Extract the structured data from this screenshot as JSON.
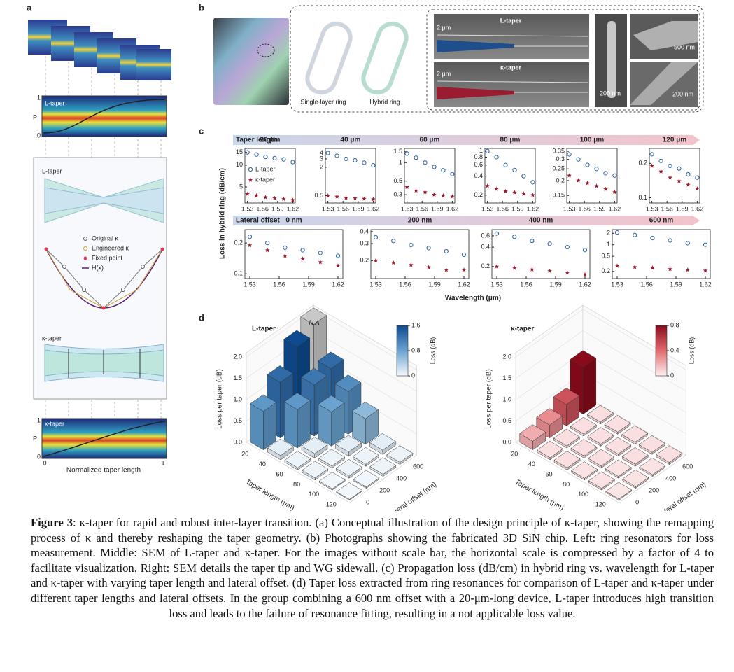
{
  "panel_a": {
    "label": "a",
    "l_taper_plot": {
      "title": "L-taper",
      "ylabel": "P",
      "ytick_low": "0",
      "ytick_high": "1"
    },
    "middle": {
      "title": "L-taper",
      "legend": [
        "Original κ",
        "Engineered κ",
        "Fixed point",
        "H(x)"
      ],
      "bottom_title": "κ-taper"
    },
    "k_taper_plot": {
      "title": "κ-taper",
      "ylabel": "P",
      "ytick_low": "0",
      "ytick_high": "1",
      "xtick_low": "0",
      "xtick_high": "1",
      "xlabel": "Normalized taper length"
    }
  },
  "panel_b": {
    "label": "b",
    "ring_labels": [
      "Single-layer ring",
      "Hybrid ring"
    ],
    "sem": [
      {
        "title": "L-taper",
        "scale": "2 μm"
      },
      {
        "title": "κ-taper",
        "scale": "2 μm"
      }
    ],
    "sem_scales": [
      "200 nm",
      "500 nm",
      "200 nm"
    ]
  },
  "panel_c": {
    "label": "c",
    "ylabel": "Loss in hybrid ring (dB/cm)",
    "xlabel": "Wavelength (μm)",
    "row1_header": "Taper length",
    "row2_header": "Lateral offset"
  },
  "panel_d": {
    "label": "d"
  },
  "chart_data": [
    {
      "type": "scatter",
      "title": "20 μm",
      "log": true,
      "legend": true,
      "x": [
        1.53,
        1.548,
        1.566,
        1.584,
        1.602,
        1.62
      ],
      "xlim": [
        1.525,
        1.625
      ],
      "xticks": [
        1.53,
        1.56,
        1.59,
        1.62
      ],
      "ylim": [
        3,
        17
      ],
      "yticks": [
        5,
        10,
        15
      ],
      "series": [
        {
          "name": "L-taper",
          "color": "#2c5f9e",
          "values": [
            15,
            14,
            13,
            12.5,
            12,
            11
          ]
        },
        {
          "name": "κ-taper",
          "color": "#9b1b30",
          "values": [
            4,
            3.8,
            3.6,
            3.5,
            3.4,
            3.3
          ]
        }
      ]
    },
    {
      "type": "scatter",
      "title": "40 μm",
      "log": true,
      "x": [
        1.53,
        1.548,
        1.566,
        1.584,
        1.602,
        1.62
      ],
      "xlim": [
        1.525,
        1.625
      ],
      "xticks": [
        1.53,
        1.56,
        1.59,
        1.62
      ],
      "ylim": [
        0.35,
        5
      ],
      "yticks": [
        0.5,
        2,
        3,
        4
      ],
      "series": [
        {
          "color": "#2c5f9e",
          "values": [
            4,
            3.5,
            3,
            2.8,
            2.5,
            2.2
          ]
        },
        {
          "color": "#9b1b30",
          "values": [
            0.5,
            0.48,
            0.45,
            0.44,
            0.43,
            0.42
          ]
        }
      ]
    },
    {
      "type": "scatter",
      "title": "60 μm",
      "log": true,
      "x": [
        1.53,
        1.548,
        1.566,
        1.584,
        1.602,
        1.62
      ],
      "xlim": [
        1.525,
        1.625
      ],
      "xticks": [
        1.53,
        1.56,
        1.59,
        1.62
      ],
      "ylim": [
        0.22,
        1.7
      ],
      "yticks": [
        0.3,
        0.5,
        1,
        1.5
      ],
      "series": [
        {
          "color": "#2c5f9e",
          "values": [
            1.4,
            1.2,
            1,
            0.85,
            0.75,
            0.65
          ]
        },
        {
          "color": "#9b1b30",
          "values": [
            0.4,
            0.35,
            0.33,
            0.3,
            0.29,
            0.28
          ]
        }
      ]
    },
    {
      "type": "scatter",
      "title": "80 μm",
      "log": true,
      "x": [
        1.53,
        1.548,
        1.566,
        1.584,
        1.602,
        1.62
      ],
      "xlim": [
        1.525,
        1.625
      ],
      "xticks": [
        1.53,
        1.56,
        1.59,
        1.62
      ],
      "ylim": [
        0.15,
        1.1
      ],
      "yticks": [
        0.2,
        0.4,
        0.6,
        0.8,
        1
      ],
      "series": [
        {
          "color": "#2c5f9e",
          "values": [
            1,
            0.8,
            0.6,
            0.5,
            0.4,
            0.32
          ]
        },
        {
          "color": "#9b1b30",
          "values": [
            0.28,
            0.25,
            0.23,
            0.22,
            0.21,
            0.2
          ]
        }
      ]
    },
    {
      "type": "scatter",
      "title": "100 μm",
      "log": true,
      "x": [
        1.53,
        1.548,
        1.566,
        1.584,
        1.602,
        1.62
      ],
      "xlim": [
        1.525,
        1.625
      ],
      "xticks": [
        1.53,
        1.56,
        1.59,
        1.62
      ],
      "ylim": [
        0.13,
        0.37
      ],
      "yticks": [
        0.15,
        0.2,
        0.25,
        0.3,
        0.35
      ],
      "series": [
        {
          "color": "#2c5f9e",
          "values": [
            0.33,
            0.3,
            0.27,
            0.25,
            0.23,
            0.22
          ]
        },
        {
          "color": "#9b1b30",
          "values": [
            0.22,
            0.2,
            0.19,
            0.18,
            0.17,
            0.16
          ]
        }
      ]
    },
    {
      "type": "scatter",
      "title": "120 μm",
      "log": true,
      "x": [
        1.53,
        1.548,
        1.566,
        1.584,
        1.602,
        1.62
      ],
      "xlim": [
        1.525,
        1.625
      ],
      "xticks": [
        1.53,
        1.56,
        1.59,
        1.62
      ],
      "ylim": [
        0.09,
        0.27
      ],
      "yticks": [
        0.1,
        0.2
      ],
      "series": [
        {
          "color": "#2c5f9e",
          "values": [
            0.24,
            0.21,
            0.19,
            0.18,
            0.16,
            0.15
          ]
        },
        {
          "color": "#9b1b30",
          "values": [
            0.19,
            0.17,
            0.15,
            0.14,
            0.13,
            0.12
          ]
        }
      ]
    },
    {
      "type": "scatter",
      "title": "0 nm",
      "log": true,
      "x": [
        1.53,
        1.548,
        1.566,
        1.584,
        1.602,
        1.62
      ],
      "xlim": [
        1.525,
        1.625
      ],
      "xticks": [
        1.53,
        1.56,
        1.59,
        1.62
      ],
      "ylim": [
        0.09,
        0.27
      ],
      "yticks": [
        0.1,
        0.2
      ],
      "series": [
        {
          "color": "#2c5f9e",
          "values": [
            0.23,
            0.2,
            0.18,
            0.17,
            0.16,
            0.15
          ]
        },
        {
          "color": "#9b1b30",
          "values": [
            0.19,
            0.17,
            0.15,
            0.14,
            0.13,
            0.12
          ]
        }
      ]
    },
    {
      "type": "scatter",
      "title": "200 nm",
      "log": true,
      "x": [
        1.53,
        1.548,
        1.566,
        1.584,
        1.602,
        1.62
      ],
      "xlim": [
        1.525,
        1.625
      ],
      "xticks": [
        1.53,
        1.56,
        1.59,
        1.62
      ],
      "ylim": [
        0.13,
        0.42
      ],
      "yticks": [
        0.2,
        0.3,
        0.4
      ],
      "series": [
        {
          "color": "#2c5f9e",
          "values": [
            0.35,
            0.32,
            0.29,
            0.27,
            0.25,
            0.23
          ]
        },
        {
          "color": "#9b1b30",
          "values": [
            0.2,
            0.19,
            0.18,
            0.17,
            0.16,
            0.16
          ]
        }
      ]
    },
    {
      "type": "scatter",
      "title": "400 nm",
      "log": true,
      "x": [
        1.53,
        1.548,
        1.566,
        1.584,
        1.602,
        1.62
      ],
      "xlim": [
        1.525,
        1.625
      ],
      "xticks": [
        1.53,
        1.56,
        1.59,
        1.62
      ],
      "ylim": [
        0.13,
        0.75
      ],
      "yticks": [
        0.2,
        0.4,
        0.6
      ],
      "series": [
        {
          "color": "#2c5f9e",
          "values": [
            0.65,
            0.58,
            0.5,
            0.45,
            0.4,
            0.36
          ]
        },
        {
          "color": "#9b1b30",
          "values": [
            0.2,
            0.19,
            0.18,
            0.17,
            0.16,
            0.15
          ]
        }
      ]
    },
    {
      "type": "scatter",
      "title": "600 nm",
      "log": true,
      "x": [
        1.53,
        1.548,
        1.566,
        1.584,
        1.602,
        1.62
      ],
      "xlim": [
        1.525,
        1.625
      ],
      "xticks": [
        1.53,
        1.56,
        1.59,
        1.62
      ],
      "ylim": [
        0.13,
        2.5
      ],
      "yticks": [
        0.2,
        0.5,
        1,
        2
      ],
      "series": [
        {
          "color": "#2c5f9e",
          "values": [
            2.1,
            1.8,
            1.5,
            1.3,
            1.1,
            1
          ]
        },
        {
          "color": "#9b1b30",
          "values": [
            0.28,
            0.26,
            0.25,
            0.23,
            0.22,
            0.21
          ]
        }
      ]
    },
    {
      "type": "bar3d",
      "title": "L-taper",
      "zlabel": "Loss per taper (dB)",
      "xlabel": "Taper length (μm)",
      "ylabel": "Lateral offset (nm)",
      "taper_lengths": [
        20,
        40,
        60,
        80,
        100,
        120
      ],
      "lateral_offsets": [
        0,
        200,
        400,
        600
      ],
      "values": [
        [
          0.9,
          1.3,
          1.85,
          null
        ],
        [
          0.1,
          0.9,
          1.2,
          1.3
        ],
        [
          0.05,
          0.1,
          0.8,
          1
        ],
        [
          0.05,
          0.05,
          0.1,
          0.6
        ],
        [
          0.03,
          0.05,
          0.05,
          0.1
        ],
        [
          0.02,
          0.03,
          0.05,
          0.05
        ]
      ],
      "value_labels": [
        [
          null,
          null,
          null,
          "N.A."
        ],
        [
          null,
          null,
          null,
          null
        ],
        [
          null,
          null,
          null,
          null
        ],
        [
          null,
          null,
          null,
          null
        ],
        [
          null,
          null,
          null,
          null
        ],
        [
          null,
          null,
          null,
          null
        ]
      ],
      "zlim": [
        0,
        2.1
      ],
      "zticks": [
        {
          "value": 0,
          "label": "0.0"
        },
        {
          "value": 0.5,
          "label": "0.5"
        },
        {
          "value": 1,
          "label": "1.0"
        },
        {
          "value": 1.5,
          "label": "1.5"
        },
        {
          "value": 2,
          "label": "2.0"
        }
      ],
      "colorbar": {
        "label": "Loss (dB)",
        "lim": [
          0,
          1.6
        ],
        "ticks": [
          0,
          0.8,
          1.6
        ],
        "colors": [
          "#f5f9fd",
          "#6aa3d0",
          "#0d4a8f"
        ]
      }
    },
    {
      "type": "bar3d",
      "title": "κ-taper",
      "zlabel": "Loss per taper (dB)",
      "xlabel": "Taper length (μm)",
      "ylabel": "Lateral offset (nm)",
      "taper_lengths": [
        20,
        40,
        60,
        80,
        100,
        120
      ],
      "lateral_offsets": [
        0,
        200,
        400,
        600
      ],
      "values": [
        [
          0.2,
          0.3,
          0.5,
          1.1
        ],
        [
          0.05,
          0.05,
          0.05,
          0.05
        ],
        [
          0.05,
          0.05,
          0.05,
          0.05
        ],
        [
          0.04,
          0.05,
          0.05,
          0.05
        ],
        [
          0.04,
          0.04,
          0.05,
          0.05
        ],
        [
          0.03,
          0.04,
          0.04,
          0.05
        ]
      ],
      "zlim": [
        0,
        2.1
      ],
      "zticks": [
        {
          "value": 0,
          "label": "0.0"
        },
        {
          "value": 0.5,
          "label": "0.5"
        },
        {
          "value": 1,
          "label": "1.0"
        },
        {
          "value": 1.5,
          "label": "1.5"
        },
        {
          "value": 2,
          "label": "2.0"
        }
      ],
      "colorbar": {
        "label": "Loss (dB)",
        "lim": [
          0,
          0.8
        ],
        "ticks": [
          0,
          0.4,
          0.8
        ],
        "colors": [
          "#fdf0f0",
          "#e26a70",
          "#8a0a1a"
        ]
      }
    }
  ],
  "caption": {
    "label": "Figure 3",
    "text": ": κ-taper for rapid and robust inter-layer transition. (a) Conceptual illustration of the design principle of κ-taper, showing the remapping process of κ and thereby reshaping the taper geometry. (b) Photographs showing the fabricated 3D SiN chip. Left: ring resonators for loss measurement. Middle: SEM of L-taper and κ-taper. For the images without scale bar, the horizontal scale is compressed by a factor of 4 to facilitate visualization. Right: SEM details the taper tip and WG sidewall. (c) Propagation loss (dB/cm) in hybrid ring vs. wavelength for L-taper and κ-taper with varying taper length and lateral offset. (d) Taper loss extracted from ring resonances for comparison of L-taper and κ-taper under different taper lengths and lateral offsets. In the group combining a 600 nm offset with a 20-μm-long device, L-taper introduces high transition loss and leads to the failure of resonance fitting, resulting in a not applicable loss value."
  }
}
